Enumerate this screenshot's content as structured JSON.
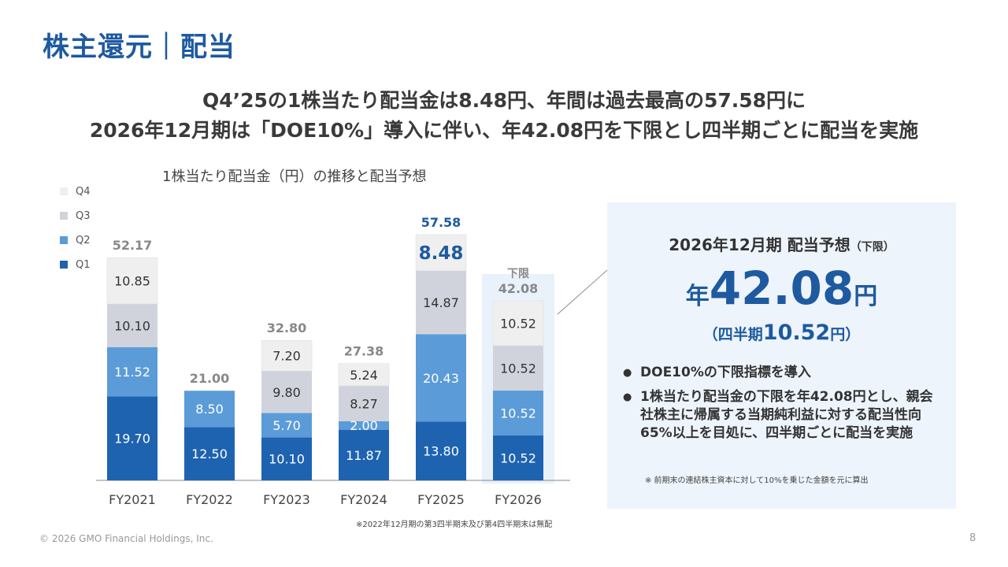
{
  "page": {
    "title": "株主還元｜配当",
    "headline_1": "Q4’25の1株当たり配当金は8.48円、年間は過去最高の57.58円に",
    "headline_2": "2026年12月期は「DOE10%」導入に伴い、年42.08円を下限とし四半期ごとに配当を実施",
    "copyright": "© 2026 GMO Financial Holdings, Inc.",
    "page_number": "8",
    "footnote": "※2022年12月期の第3四半期末及び第4四半期末は無配"
  },
  "colors": {
    "q1": "#1e63b0",
    "q2": "#5b9bd8",
    "q3": "#d1d3dc",
    "q4": "#efefef",
    "highlight_box": "#e9f2fb",
    "accent": "#1e5aa0"
  },
  "chart_data": {
    "type": "bar",
    "stacked": true,
    "title": "1株当たり配当金（円）の推移と配当予想",
    "categories": [
      "FY2021",
      "FY2022",
      "FY2023",
      "FY2024",
      "FY2025",
      "FY2026"
    ],
    "series": [
      {
        "name": "Q1",
        "values": [
          19.7,
          12.5,
          10.1,
          11.87,
          13.8,
          10.52
        ]
      },
      {
        "name": "Q2",
        "values": [
          11.52,
          8.5,
          5.7,
          2.0,
          20.43,
          10.52
        ]
      },
      {
        "name": "Q3",
        "values": [
          10.1,
          null,
          9.8,
          8.27,
          14.87,
          10.52
        ]
      },
      {
        "name": "Q4",
        "values": [
          10.85,
          null,
          7.2,
          5.24,
          8.48,
          10.52
        ]
      }
    ],
    "labels": [
      [
        "19.70",
        "11.52",
        "10.10",
        "10.85"
      ],
      [
        "12.50",
        "8.50",
        "",
        ""
      ],
      [
        "10.10",
        "5.70",
        "9.80",
        "7.20"
      ],
      [
        "11.87",
        "2.00",
        "8.27",
        "5.24"
      ],
      [
        "13.80",
        "20.43",
        "14.87",
        "8.48"
      ],
      [
        "10.52",
        "10.52",
        "10.52",
        "10.52"
      ]
    ],
    "totals": [
      "52.17",
      "21.00",
      "32.80",
      "27.38",
      "57.58",
      "42.08"
    ],
    "total_prefix_fy2026": "下限",
    "legend": [
      "Q4",
      "Q3",
      "Q2",
      "Q1"
    ],
    "ylim": [
      0,
      65
    ],
    "highlight": {
      "FY2025_Q4": true,
      "FY2025_total": true,
      "FY2026_box": true
    }
  },
  "panel": {
    "title": "2026年12月期 配当予想",
    "title_suffix": "（下限）",
    "annual_prefix": "年",
    "annual_value": "42.08",
    "annual_unit": "円",
    "quarter_open": "（四半期",
    "quarter_value": "10.52",
    "quarter_close": "円）",
    "bullets": [
      "DOE10%の下限指標を導入",
      "1株当たり配当金の下限を年42.08円とし、親会社株主に帰属する当期純利益に対する配当性向65%以上を目処に、四半期ごとに配当を実施"
    ],
    "note": "※ 前期末の連結株主資本に対して10%を乗じた金額を元に算出"
  }
}
